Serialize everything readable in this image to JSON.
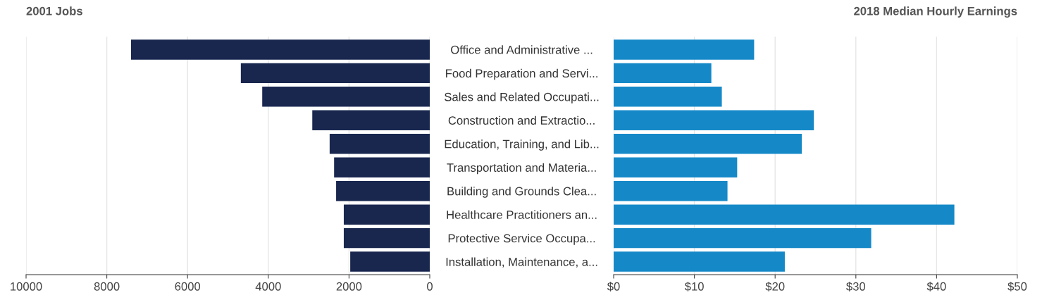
{
  "chart_data": [
    {
      "type": "bar",
      "orientation": "horizontal",
      "title": "2001 Jobs",
      "categories": [
        "Office and Administrative ...",
        "Food Preparation and Servi...",
        "Sales and Related Occupati...",
        "Construction and Extractio...",
        "Education, Training, and Lib...",
        "Transportation and Materia...",
        "Building and Grounds Clea...",
        "Healthcare Practitioners an...",
        "Protective Service Occupa...",
        "Installation, Maintenance, a..."
      ],
      "values": [
        7400,
        4680,
        4150,
        2910,
        2480,
        2370,
        2320,
        2130,
        2130,
        1970
      ],
      "color": "#19274f",
      "xlim": [
        10000,
        0
      ],
      "xticks": [
        10000,
        8000,
        6000,
        4000,
        2000,
        0
      ],
      "grid": "x"
    },
    {
      "type": "bar",
      "orientation": "horizontal",
      "title": "2018 Median Hourly Earnings",
      "categories": [
        null,
        null,
        null,
        null,
        null,
        null,
        null,
        null,
        null,
        null
      ],
      "values": [
        17.4,
        12.1,
        13.4,
        24.8,
        23.3,
        15.3,
        14.1,
        42.2,
        31.9,
        21.2
      ],
      "color": "#1589c8",
      "xlim": [
        0,
        50
      ],
      "xticks": [
        {
          "value": 0,
          "label": "$0"
        },
        {
          "value": 10,
          "label": "$10"
        },
        {
          "value": 20,
          "label": "$20"
        },
        {
          "value": 30,
          "label": "$30"
        },
        {
          "value": 40,
          "label": "$40"
        },
        {
          "value": 50,
          "label": "$50"
        }
      ],
      "grid": "x",
      "tick_labels": "x"
    }
  ]
}
